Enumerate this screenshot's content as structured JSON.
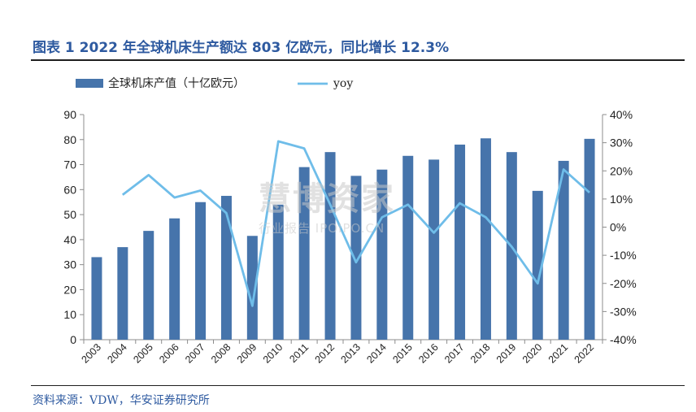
{
  "title": "图表 1 2022 年全球机床生产额达 803 亿欧元，同比增长 12.3%",
  "source": "资料来源：VDW，华安证券研究所",
  "watermark": {
    "main": "慧博资家",
    "sub": "行业报告 IPOIPO.CN"
  },
  "colors": {
    "bar": "#4674ab",
    "line": "#6fbde9",
    "title": "#2e5aa0"
  },
  "chart_data": {
    "type": "bar",
    "categories": [
      "2003",
      "2004",
      "2005",
      "2006",
      "2007",
      "2008",
      "2009",
      "2010",
      "2011",
      "2012",
      "2013",
      "2014",
      "2015",
      "2016",
      "2017",
      "2018",
      "2019",
      "2020",
      "2021",
      "2022"
    ],
    "series": [
      {
        "name": "全球机床产值（十亿欧元）",
        "type": "bar",
        "axis": "left",
        "values": [
          33,
          37,
          43.5,
          48.5,
          55,
          57.5,
          41.5,
          54,
          69,
          75,
          65.5,
          68,
          73.5,
          72,
          78,
          80.5,
          75,
          59.5,
          71.5,
          80.3
        ]
      },
      {
        "name": "yoy",
        "type": "line",
        "axis": "right",
        "values": [
          null,
          11.5,
          18.5,
          10.5,
          13,
          5,
          -28,
          30.5,
          28,
          8,
          -12.5,
          3.5,
          8,
          -2,
          8.5,
          3.5,
          -7,
          -20,
          20.5,
          12.3
        ]
      }
    ],
    "left_axis": {
      "min": 0,
      "max": 90,
      "step": 10,
      "ticks": [
        "0",
        "10",
        "20",
        "30",
        "40",
        "50",
        "60",
        "70",
        "80",
        "90"
      ]
    },
    "right_axis": {
      "min": -40,
      "max": 40,
      "step": 10,
      "ticks": [
        "-40%",
        "-30%",
        "-20%",
        "-10%",
        "0%",
        "10%",
        "20%",
        "30%",
        "40%"
      ]
    },
    "legend_position": "top-left",
    "grid": false
  }
}
